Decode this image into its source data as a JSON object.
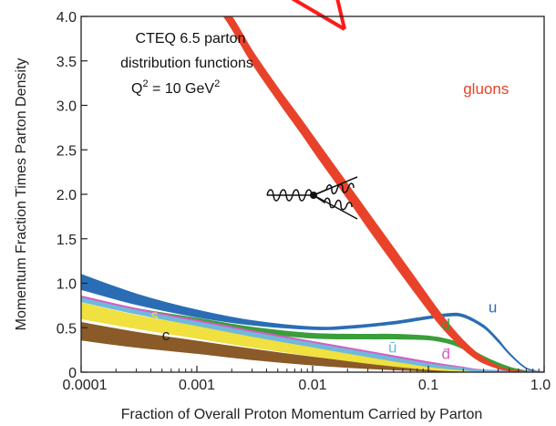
{
  "chart_data": {
    "type": "area",
    "title": "",
    "xlabel": "Fraction of Overall Proton Momentum Carried by Parton",
    "ylabel": "Momentum Fraction Times Parton Density",
    "xscale": "log",
    "xlim": [
      0.0001,
      1.0
    ],
    "ylim": [
      0,
      4.0
    ],
    "x_ticks": [
      "0.0001",
      "0.001",
      "0.01",
      "0.1",
      "1.0"
    ],
    "y_ticks": [
      "0",
      "0.5",
      "1.0",
      "1.5",
      "2.0",
      "2.5",
      "3.0",
      "3.5",
      "4.0"
    ],
    "grid": false,
    "annotation": {
      "line1": "CTEQ 6.5 parton",
      "line2": "distribution functions",
      "line3_prefix": "Q",
      "line3_sup": "2",
      "line3_mid": " = 10 GeV",
      "line3_sup2": "2"
    },
    "series": [
      {
        "name": "gluons",
        "color": "#e8432a",
        "x": [
          0.0017,
          0.002,
          0.003,
          0.005,
          0.008,
          0.012,
          0.02,
          0.03,
          0.05,
          0.08,
          0.12,
          0.16,
          0.2,
          0.25,
          0.3,
          0.4,
          0.5,
          0.7,
          1.0
        ],
        "lower": [
          4.0,
          3.86,
          3.47,
          3.05,
          2.68,
          2.35,
          1.95,
          1.62,
          1.22,
          0.86,
          0.56,
          0.38,
          0.26,
          0.16,
          0.1,
          0.04,
          0.015,
          0.002,
          0
        ],
        "upper": [
          4.0,
          4.0,
          3.62,
          3.2,
          2.84,
          2.52,
          2.12,
          1.8,
          1.4,
          1.03,
          0.71,
          0.5,
          0.36,
          0.24,
          0.16,
          0.07,
          0.03,
          0.005,
          0
        ]
      },
      {
        "name": "u",
        "color": "#2a6db5",
        "x": [
          0.0001,
          0.0003,
          0.001,
          0.003,
          0.01,
          0.02,
          0.05,
          0.1,
          0.15,
          0.2,
          0.3,
          0.4,
          0.5,
          0.7,
          1.0
        ],
        "lower": [
          0.93,
          0.76,
          0.62,
          0.53,
          0.48,
          0.49,
          0.54,
          0.6,
          0.63,
          0.62,
          0.5,
          0.34,
          0.2,
          0.04,
          0
        ],
        "upper": [
          1.1,
          0.88,
          0.7,
          0.58,
          0.51,
          0.52,
          0.57,
          0.63,
          0.66,
          0.65,
          0.53,
          0.37,
          0.22,
          0.05,
          0
        ]
      },
      {
        "name": "d",
        "color": "#3a9e3a",
        "x": [
          0.0001,
          0.0003,
          0.001,
          0.003,
          0.01,
          0.03,
          0.05,
          0.1,
          0.15,
          0.2,
          0.3,
          0.5,
          0.7,
          1.0
        ],
        "lower": [
          0.8,
          0.67,
          0.56,
          0.46,
          0.39,
          0.38,
          0.38,
          0.37,
          0.33,
          0.27,
          0.15,
          0.04,
          0.01,
          0
        ],
        "upper": [
          0.84,
          0.71,
          0.6,
          0.5,
          0.43,
          0.42,
          0.42,
          0.4,
          0.36,
          0.3,
          0.17,
          0.05,
          0.01,
          0
        ]
      },
      {
        "name": "s",
        "color": "#f0e040",
        "x": [
          0.0001,
          0.0003,
          0.001,
          0.003,
          0.01,
          0.03,
          0.1,
          0.2,
          0.3,
          1.0
        ],
        "lower": [
          0.6,
          0.49,
          0.38,
          0.28,
          0.18,
          0.1,
          0.03,
          0.01,
          0.003,
          0
        ],
        "upper": [
          0.78,
          0.64,
          0.52,
          0.4,
          0.28,
          0.17,
          0.06,
          0.02,
          0.006,
          0
        ]
      },
      {
        "name": "d̄",
        "color": "#d65bc2",
        "x": [
          0.0001,
          0.0003,
          0.001,
          0.003,
          0.01,
          0.03,
          0.1,
          0.2,
          0.3,
          1.0
        ],
        "lower": [
          0.82,
          0.68,
          0.55,
          0.43,
          0.31,
          0.2,
          0.09,
          0.04,
          0.015,
          0
        ],
        "upper": [
          0.85,
          0.71,
          0.58,
          0.46,
          0.34,
          0.23,
          0.11,
          0.05,
          0.02,
          0
        ]
      },
      {
        "name": "ū",
        "color": "#6fb9dc",
        "x": [
          0.0001,
          0.0003,
          0.001,
          0.003,
          0.01,
          0.03,
          0.1,
          0.2,
          0.3,
          1.0
        ],
        "lower": [
          0.8,
          0.66,
          0.53,
          0.41,
          0.29,
          0.18,
          0.07,
          0.03,
          0.01,
          0
        ],
        "upper": [
          0.83,
          0.69,
          0.56,
          0.44,
          0.32,
          0.21,
          0.09,
          0.04,
          0.015,
          0
        ]
      },
      {
        "name": "c",
        "color": "#8a5a28",
        "x": [
          0.0001,
          0.0003,
          0.001,
          0.003,
          0.01,
          0.03,
          0.1,
          0.2,
          0.3,
          1.0
        ],
        "lower": [
          0.36,
          0.28,
          0.21,
          0.14,
          0.08,
          0.04,
          0.01,
          0.004,
          0.001,
          0
        ],
        "upper": [
          0.56,
          0.45,
          0.35,
          0.26,
          0.17,
          0.1,
          0.04,
          0.015,
          0.005,
          0
        ]
      }
    ],
    "series_labels": [
      {
        "text": "gluons",
        "color": "#e8432a",
        "x": 0.2,
        "y": 3.13
      },
      {
        "text": "u",
        "color": "#2a6db5",
        "x": 0.33,
        "y": 0.67
      },
      {
        "text": "d",
        "color": "#3a9e3a",
        "x": 0.13,
        "y": 0.48
      },
      {
        "text": "s",
        "color": "#f0e040",
        "x": 0.0004,
        "y": 0.58
      },
      {
        "text": "c",
        "color": "#222222",
        "x": 0.0005,
        "y": 0.36
      },
      {
        "text": "ū",
        "color": "#6fb9dc",
        "x": 0.045,
        "y": 0.22
      },
      {
        "text": "d̄",
        "color": "#d65bc2",
        "x": 0.13,
        "y": 0.15
      }
    ]
  }
}
